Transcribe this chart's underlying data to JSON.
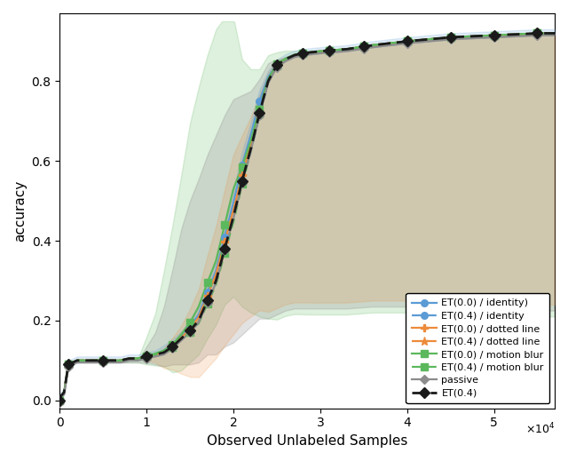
{
  "xlabel": "Observed Unlabeled Samples",
  "ylabel": "accuracy",
  "xlim": [
    0,
    57000
  ],
  "ylim": [
    -0.02,
    0.97
  ],
  "colors": {
    "blue": "#5b9bd5",
    "orange": "#ed8b3b",
    "green": "#5cb85c",
    "gray": "#8c8c8c",
    "black": "#1a1a1a"
  },
  "x_key": [
    0,
    100,
    500,
    1000,
    2000,
    3000,
    4000,
    5000,
    6000,
    7000,
    8000,
    9000,
    10000,
    11000,
    12000,
    13000,
    14000,
    15000,
    16000,
    17000,
    18000,
    19000,
    20000,
    21000,
    22000,
    23000,
    24000,
    25000,
    26000,
    27000,
    28000,
    30000,
    33000,
    36000,
    40000,
    45000,
    50000,
    55000
  ],
  "y_main": [
    0.0,
    0.01,
    0.02,
    0.09,
    0.1,
    0.1,
    0.1,
    0.1,
    0.1,
    0.1,
    0.105,
    0.105,
    0.11,
    0.115,
    0.12,
    0.135,
    0.155,
    0.175,
    0.2,
    0.25,
    0.3,
    0.38,
    0.46,
    0.55,
    0.63,
    0.72,
    0.8,
    0.84,
    0.855,
    0.865,
    0.87,
    0.875,
    0.88,
    0.89,
    0.9,
    0.91,
    0.915,
    0.92
  ],
  "y_id0_offset": [
    0.0,
    0.0,
    0.0,
    0.0,
    0.0,
    0.0,
    0.0,
    0.0,
    0.0,
    0.0,
    0.0,
    0.0,
    0.0,
    0.0,
    0.01,
    0.01,
    0.01,
    0.02,
    0.03,
    0.04,
    0.05,
    0.06,
    0.07,
    0.08,
    0.07,
    0.06,
    0.02,
    0.005,
    0.003,
    0.002,
    0.001,
    0.0,
    0.0,
    0.0,
    0.0,
    0.0,
    0.0,
    0.0
  ],
  "y_mot0_offset": [
    0.0,
    0.0,
    0.0,
    0.0,
    0.0,
    0.0,
    0.0,
    0.0,
    0.0,
    0.0,
    0.0,
    0.0,
    0.0,
    0.005,
    0.01,
    0.01,
    0.02,
    0.04,
    0.07,
    0.09,
    0.1,
    0.12,
    0.14,
    0.07,
    0.04,
    0.02,
    0.01,
    0.005,
    0.003,
    0.002,
    0.001,
    0.0,
    0.0,
    0.0,
    0.0,
    0.0,
    0.0,
    0.0
  ],
  "y_dot0_offset": [
    0.0,
    0.0,
    0.0,
    0.0,
    0.0,
    0.0,
    0.0,
    0.0,
    0.0,
    0.0,
    0.0,
    0.0,
    0.0,
    0.0,
    0.005,
    0.01,
    0.01,
    0.02,
    0.04,
    0.06,
    0.08,
    0.09,
    0.08,
    0.07,
    0.05,
    0.03,
    0.01,
    0.005,
    0.003,
    0.002,
    0.001,
    0.0,
    0.0,
    0.0,
    0.0,
    0.0,
    0.0,
    0.0
  ],
  "shading": {
    "green_upper_extra": [
      0.0,
      0.0,
      0.0,
      0.0,
      0.0,
      0.0,
      0.0,
      0.0,
      0.0,
      0.0,
      0.0,
      0.0,
      0.05,
      0.1,
      0.2,
      0.3,
      0.4,
      0.5,
      0.55,
      0.57,
      0.58,
      0.52,
      0.43,
      0.27,
      0.18,
      0.1,
      0.06,
      0.03,
      0.02,
      0.01,
      0.005,
      0.003,
      0.002,
      0.001,
      0.0,
      0.0,
      0.0,
      0.0
    ],
    "green_lower_extra": [
      0.0,
      0.0,
      0.0,
      0.0,
      0.0,
      0.0,
      0.0,
      0.0,
      0.0,
      0.005,
      0.01,
      0.01,
      0.02,
      0.03,
      0.04,
      0.07,
      0.09,
      0.1,
      0.12,
      0.14,
      0.16,
      0.2,
      0.27,
      0.35,
      0.43,
      0.52,
      0.6,
      0.64,
      0.645,
      0.65,
      0.655,
      0.66,
      0.665,
      0.67,
      0.68,
      0.69,
      0.7,
      0.71
    ],
    "gray_upper_extra": [
      0.0,
      0.0,
      0.0,
      0.0,
      0.0,
      0.0,
      0.0,
      0.0,
      0.0,
      0.0,
      0.0,
      0.0,
      0.03,
      0.06,
      0.12,
      0.2,
      0.28,
      0.33,
      0.36,
      0.37,
      0.37,
      0.34,
      0.3,
      0.22,
      0.15,
      0.09,
      0.05,
      0.02,
      0.01,
      0.005,
      0.002,
      0.001,
      0.0,
      0.0,
      0.0,
      0.0,
      0.0,
      0.0
    ],
    "gray_lower_extra": [
      0.0,
      0.0,
      0.0,
      0.0,
      0.0,
      0.0,
      0.0,
      0.0,
      0.0,
      0.0,
      0.005,
      0.005,
      0.01,
      0.02,
      0.03,
      0.04,
      0.06,
      0.08,
      0.1,
      0.13,
      0.18,
      0.24,
      0.31,
      0.38,
      0.44,
      0.51,
      0.59,
      0.62,
      0.625,
      0.63,
      0.635,
      0.64,
      0.645,
      0.65,
      0.66,
      0.67,
      0.68,
      0.69
    ],
    "orange_upper_extra": [
      0.0,
      0.0,
      0.0,
      0.0,
      0.0,
      0.0,
      0.0,
      0.0,
      0.0,
      0.0,
      0.0,
      0.0,
      0.0,
      0.0,
      0.01,
      0.02,
      0.03,
      0.05,
      0.07,
      0.1,
      0.12,
      0.13,
      0.14,
      0.1,
      0.07,
      0.04,
      0.02,
      0.01,
      0.005,
      0.003,
      0.001,
      0.0,
      0.0,
      0.0,
      0.0,
      0.0,
      0.0,
      0.0
    ],
    "orange_lower_extra": [
      0.0,
      0.0,
      0.0,
      0.0,
      0.0,
      0.0,
      0.0,
      0.0,
      0.0,
      0.0,
      0.0,
      0.0,
      0.01,
      0.02,
      0.04,
      0.06,
      0.09,
      0.12,
      0.15,
      0.18,
      0.21,
      0.26,
      0.31,
      0.37,
      0.43,
      0.5,
      0.58,
      0.61,
      0.615,
      0.62,
      0.625,
      0.63,
      0.635,
      0.64,
      0.65,
      0.66,
      0.67,
      0.68
    ]
  },
  "x_markers": [
    0,
    1000,
    5000,
    10000,
    13000,
    15000,
    17000,
    19000,
    21000,
    23000,
    25000,
    28000,
    31000,
    35000,
    40000,
    45000,
    50000,
    55000
  ],
  "legend": {
    "et00_id": "ET(0.0) / identity)",
    "et04_id": "ET(0.4) / identity",
    "et00_dot": "ET(0.0) / dotted line",
    "et04_dot": "ET(0.4) / dotted line",
    "et00_mot": "ET(0.0) / motion blur",
    "et04_mot": "ET(0.4) / motion blur",
    "passive": "passive",
    "et04": "ET(0.4)"
  }
}
